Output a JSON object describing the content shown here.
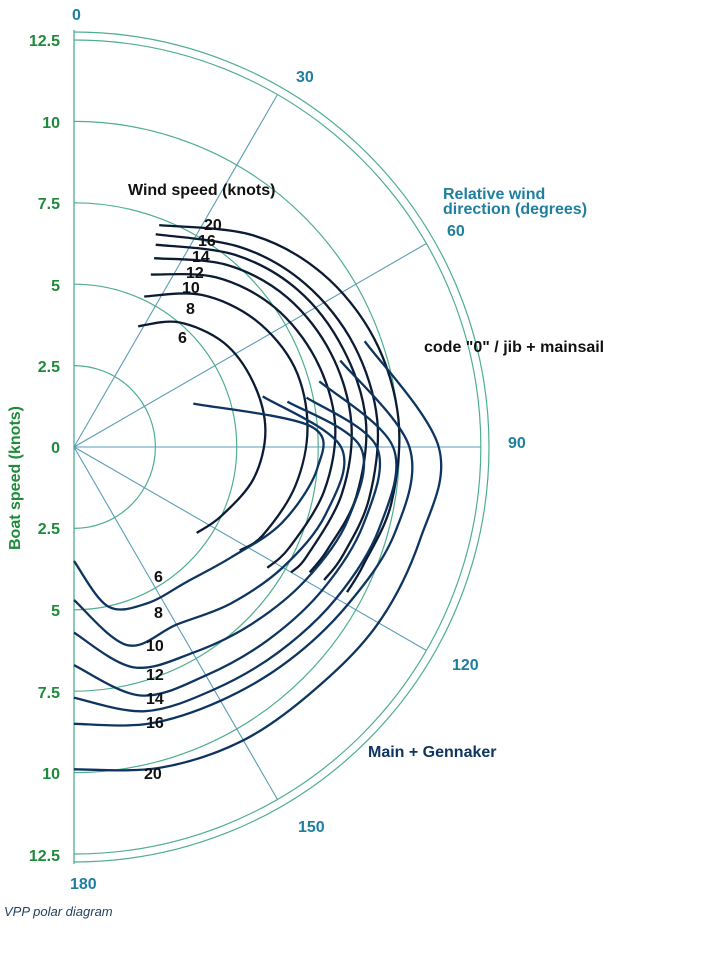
{
  "caption": "VPP polar diagram",
  "colors": {
    "grid": "#4fae8e",
    "spoke": "#5a9cb8",
    "speed_label": "#1e8a3a",
    "angle_label": "#1f7f9f",
    "curve_upwind": "#0b1b33",
    "curve_downwind": "#0d3560"
  },
  "chart_data": {
    "type": "polar-line",
    "ylabel": "Boat speed (knots)",
    "radial_ticks": [
      "12.5",
      "10",
      "7.5",
      "5",
      "2.5",
      "0",
      "2.5",
      "5",
      "7.5",
      "10",
      "12.5"
    ],
    "radial_rings": [
      2.5,
      5,
      7.5,
      10,
      12.5
    ],
    "rmax": 12.5,
    "angle_ticks": [
      "0",
      "30",
      "60",
      "90",
      "120",
      "150",
      "180"
    ],
    "angle_axis_label": [
      "Relative wind",
      "direction (degrees)"
    ],
    "wind_speed_title": "Wind speed (knots)",
    "upwind_note": "code \"0\" / jib + mainsail",
    "downwind_note": "Main + Gennaker",
    "upwind_labels": [
      "20",
      "16",
      "14",
      "12",
      "10",
      "8",
      "6"
    ],
    "downwind_labels": [
      "6",
      "8",
      "10",
      "12",
      "14",
      "16",
      "20"
    ],
    "upwind_series": [
      {
        "name": "6",
        "points": [
          [
            28,
            4.2
          ],
          [
            40,
            5.0
          ],
          [
            55,
            5.6
          ],
          [
            70,
            5.85
          ],
          [
            85,
            5.9
          ],
          [
            100,
            5.6
          ],
          [
            115,
            5.0
          ],
          [
            125,
            4.6
          ]
        ]
      },
      {
        "name": "8",
        "points": [
          [
            25,
            5.1
          ],
          [
            40,
            6.1
          ],
          [
            55,
            6.8
          ],
          [
            70,
            7.2
          ],
          [
            85,
            7.2
          ],
          [
            100,
            6.9
          ],
          [
            115,
            6.4
          ],
          [
            122,
            6.0
          ]
        ]
      },
      {
        "name": "10",
        "points": [
          [
            24,
            5.8
          ],
          [
            40,
            6.8
          ],
          [
            55,
            7.5
          ],
          [
            70,
            7.9
          ],
          [
            85,
            8.05
          ],
          [
            100,
            7.8
          ],
          [
            115,
            7.3
          ],
          [
            122,
            7.0
          ]
        ]
      },
      {
        "name": "12",
        "points": [
          [
            23,
            6.3
          ],
          [
            40,
            7.3
          ],
          [
            55,
            8.0
          ],
          [
            70,
            8.4
          ],
          [
            85,
            8.55
          ],
          [
            100,
            8.35
          ],
          [
            115,
            7.9
          ],
          [
            120,
            7.7
          ]
        ]
      },
      {
        "name": "14",
        "points": [
          [
            22,
            6.7
          ],
          [
            40,
            7.7
          ],
          [
            55,
            8.4
          ],
          [
            70,
            8.8
          ],
          [
            85,
            9.0
          ],
          [
            100,
            8.8
          ],
          [
            112,
            8.4
          ],
          [
            118,
            8.2
          ]
        ]
      },
      {
        "name": "16",
        "points": [
          [
            21,
            7.0
          ],
          [
            40,
            8.0
          ],
          [
            55,
            8.7
          ],
          [
            70,
            9.15
          ],
          [
            85,
            9.35
          ],
          [
            100,
            9.2
          ],
          [
            112,
            8.9
          ],
          [
            118,
            8.7
          ]
        ]
      },
      {
        "name": "20",
        "points": [
          [
            21,
            7.3
          ],
          [
            40,
            8.5
          ],
          [
            55,
            9.3
          ],
          [
            70,
            9.8
          ],
          [
            85,
            10.0
          ],
          [
            100,
            9.9
          ],
          [
            112,
            9.6
          ],
          [
            118,
            9.5
          ]
        ]
      }
    ],
    "downwind_series": [
      {
        "name": "6",
        "points": [
          [
            70,
            3.9
          ],
          [
            85,
            7.3
          ],
          [
            95,
            7.5
          ],
          [
            110,
            6.8
          ],
          [
            125,
            5.9
          ],
          [
            140,
            5.4
          ],
          [
            155,
            5.3
          ],
          [
            168,
            5.0
          ],
          [
            180,
            3.5
          ]
        ]
      },
      {
        "name": "8",
        "points": [
          [
            75,
            6.0
          ],
          [
            90,
            8.2
          ],
          [
            105,
            8.0
          ],
          [
            120,
            7.4
          ],
          [
            135,
            6.8
          ],
          [
            150,
            6.3
          ],
          [
            165,
            6.3
          ],
          [
            180,
            4.7
          ]
        ]
      },
      {
        "name": "10",
        "points": [
          [
            78,
            6.7
          ],
          [
            90,
            8.8
          ],
          [
            105,
            8.7
          ],
          [
            120,
            8.2
          ],
          [
            135,
            7.7
          ],
          [
            150,
            7.3
          ],
          [
            165,
            7.0
          ],
          [
            180,
            5.7
          ]
        ]
      },
      {
        "name": "12",
        "points": [
          [
            78,
            7.3
          ],
          [
            90,
            9.3
          ],
          [
            105,
            9.2
          ],
          [
            120,
            8.8
          ],
          [
            135,
            8.4
          ],
          [
            150,
            8.1
          ],
          [
            165,
            7.9
          ],
          [
            180,
            6.7
          ]
        ]
      },
      {
        "name": "14",
        "points": [
          [
            75,
            7.8
          ],
          [
            90,
            9.8
          ],
          [
            105,
            9.7
          ],
          [
            120,
            9.3
          ],
          [
            135,
            8.9
          ],
          [
            150,
            8.6
          ],
          [
            165,
            8.4
          ],
          [
            180,
            7.7
          ]
        ]
      },
      {
        "name": "16",
        "points": [
          [
            72,
            8.6
          ],
          [
            90,
            10.3
          ],
          [
            105,
            10.2
          ],
          [
            120,
            9.7
          ],
          [
            135,
            9.3
          ],
          [
            150,
            9.0
          ],
          [
            165,
            8.8
          ],
          [
            180,
            8.5
          ]
        ]
      },
      {
        "name": "20",
        "points": [
          [
            70,
            9.5
          ],
          [
            90,
            11.2
          ],
          [
            105,
            11.0
          ],
          [
            120,
            10.8
          ],
          [
            135,
            10.5
          ],
          [
            150,
            10.4
          ],
          [
            165,
            10.2
          ],
          [
            180,
            9.9
          ]
        ]
      }
    ]
  }
}
